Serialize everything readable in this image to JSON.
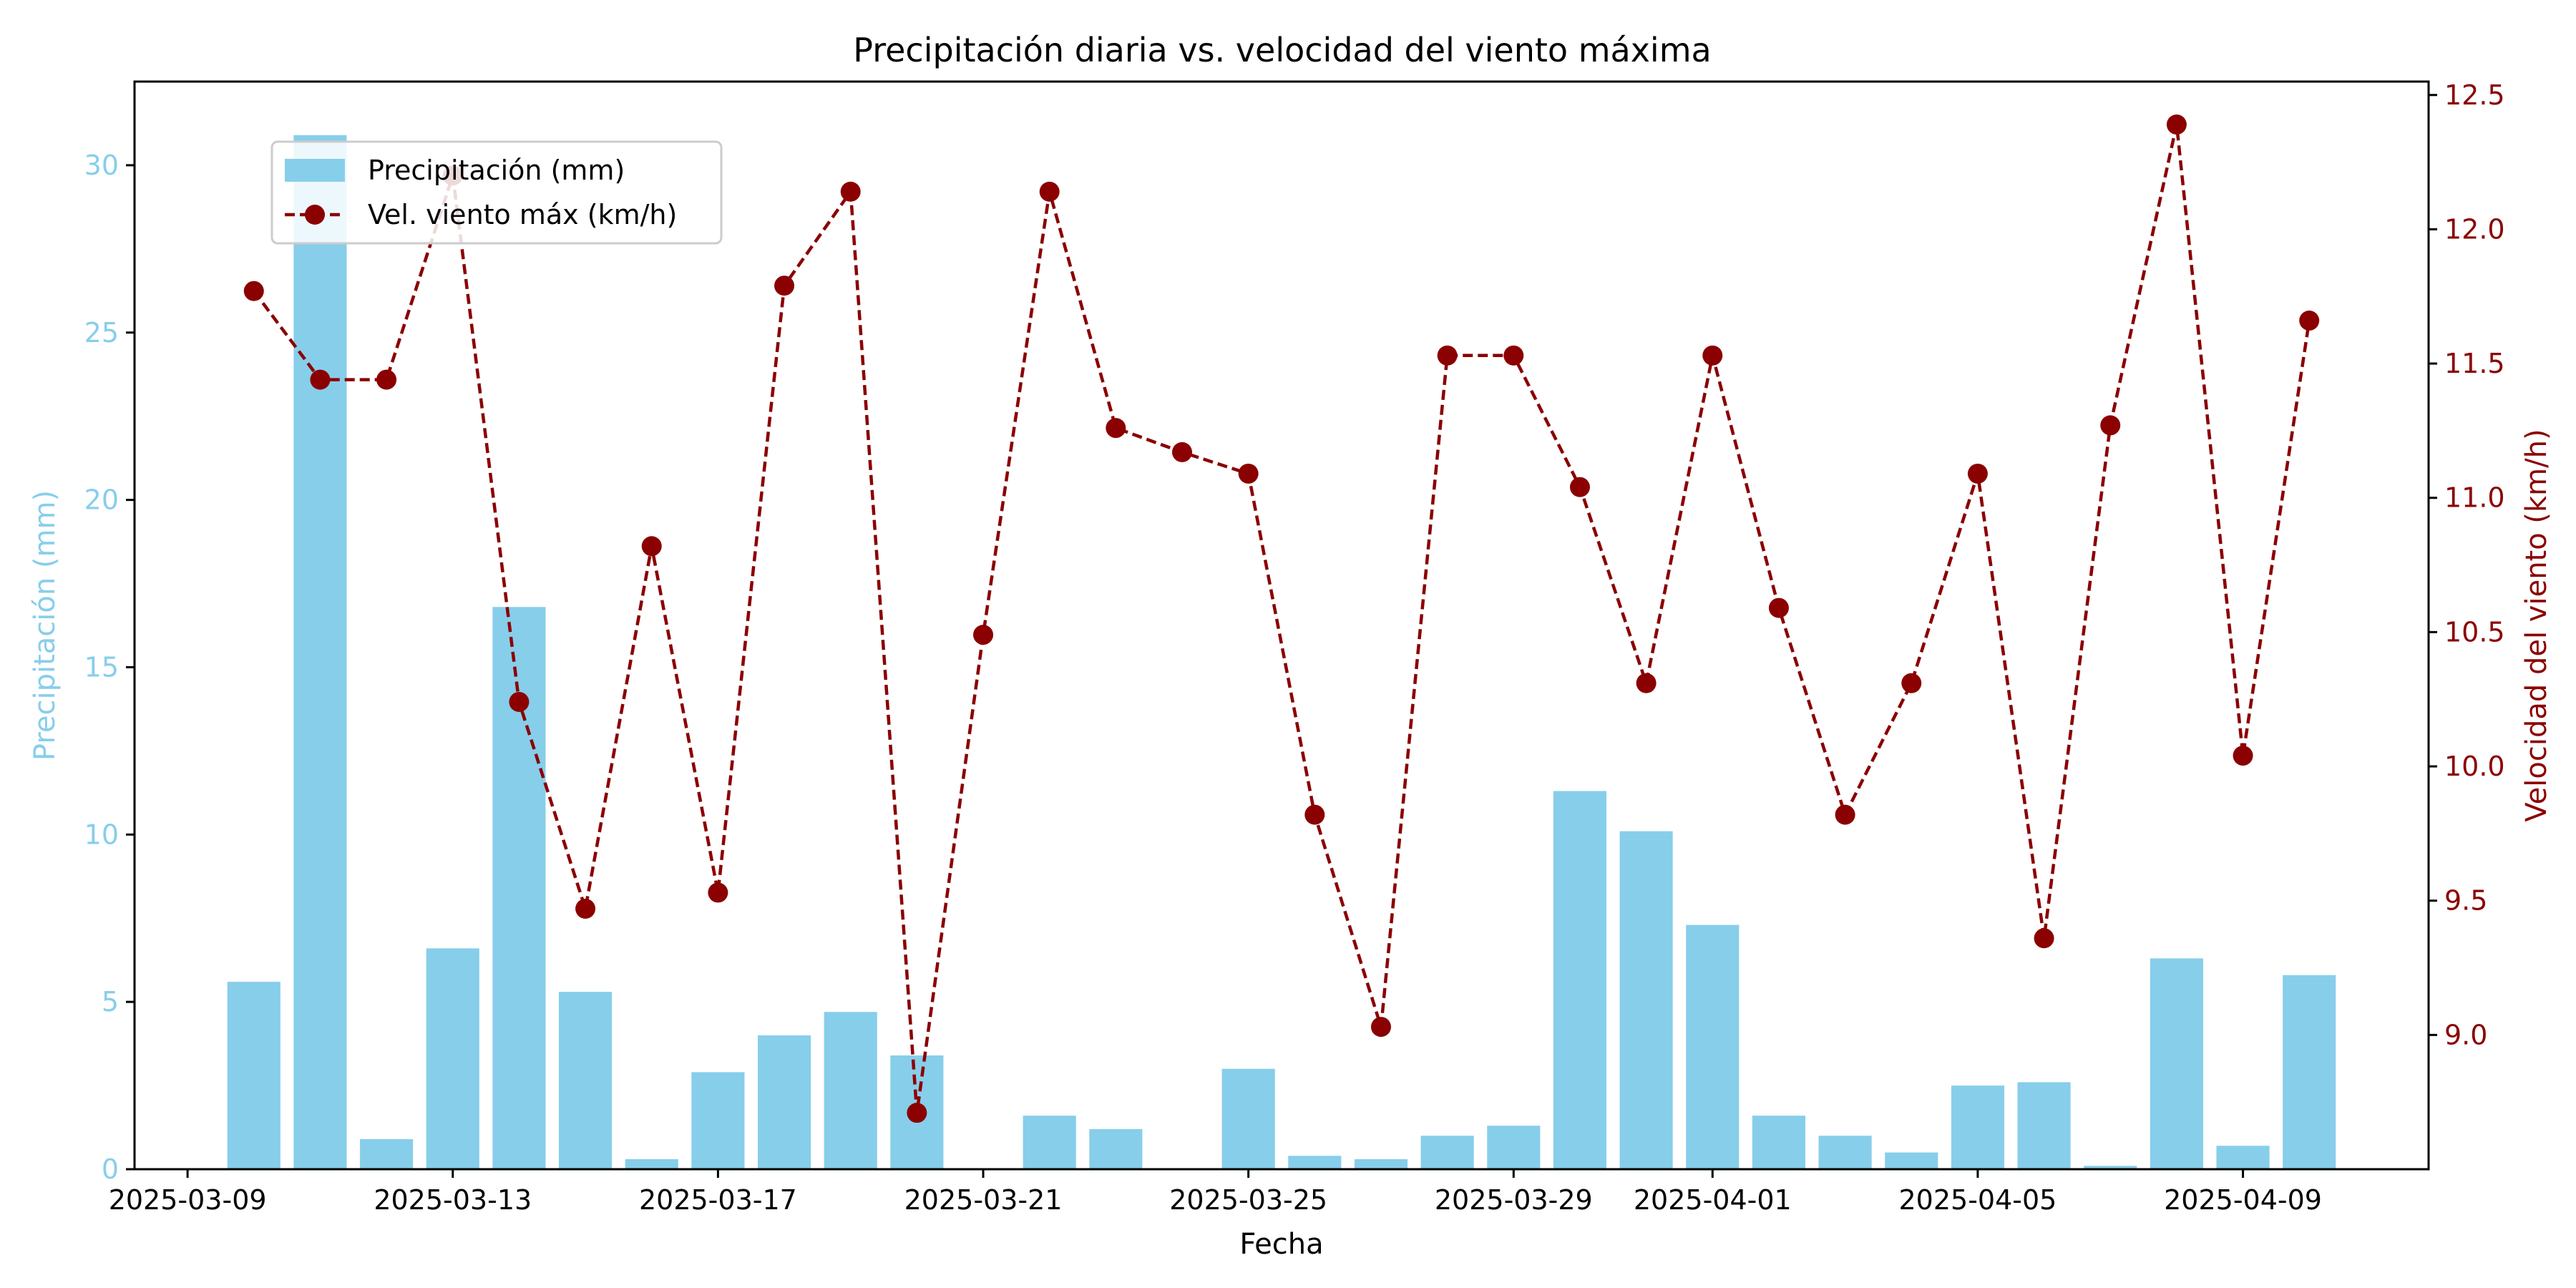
{
  "chart_data": {
    "type": "bar+line",
    "title": "Precipitación diaria vs. velocidad del viento máxima",
    "xlabel": "Fecha",
    "ylabel_left": "Precipitación (mm)",
    "ylabel_right": "Velocidad del viento (km/h)",
    "x_start": "2025-03-10",
    "x_tick_labels": [
      "2025-03-09",
      "2025-03-13",
      "2025-03-17",
      "2025-03-21",
      "2025-03-25",
      "2025-03-29",
      "2025-04-01",
      "2025-04-05",
      "2025-04-09"
    ],
    "y_left_ticks": [
      0,
      5,
      10,
      15,
      20,
      25,
      30
    ],
    "y_left_lim": [
      0,
      32.5
    ],
    "y_right_ticks": [
      9.0,
      9.5,
      10.0,
      10.5,
      11.0,
      11.5,
      12.0,
      12.5
    ],
    "y_right_lim": [
      8.5,
      12.55
    ],
    "legend_position": "upper-left",
    "colors": {
      "bars": "#87CEEB",
      "line": "#8B0000",
      "left_axis": "#87CEEB",
      "right_axis": "#8B0000"
    },
    "series": [
      {
        "name": "Precipitación (mm)",
        "kind": "bar",
        "axis": "left",
        "values": [
          5.6,
          30.9,
          0.9,
          6.6,
          16.8,
          5.3,
          0.3,
          2.9,
          4.0,
          4.7,
          3.4,
          0.0,
          1.6,
          1.2,
          0.0,
          3.0,
          0.4,
          0.3,
          1.0,
          1.3,
          11.3,
          10.1,
          7.3,
          1.6,
          1.0,
          0.5,
          2.5,
          2.6,
          0.1,
          6.3,
          0.7,
          5.8
        ]
      },
      {
        "name": "Vel. viento máx (km/h)",
        "kind": "line",
        "axis": "right",
        "values": [
          11.77,
          11.44,
          11.44,
          12.2,
          10.24,
          9.47,
          10.82,
          9.53,
          11.79,
          12.14,
          8.71,
          10.49,
          12.14,
          11.26,
          11.17,
          11.09,
          9.82,
          9.03,
          11.53,
          11.53,
          11.04,
          10.31,
          11.53,
          10.59,
          9.82,
          10.31,
          11.09,
          9.36,
          11.27,
          12.39,
          10.04,
          11.66
        ]
      }
    ]
  }
}
